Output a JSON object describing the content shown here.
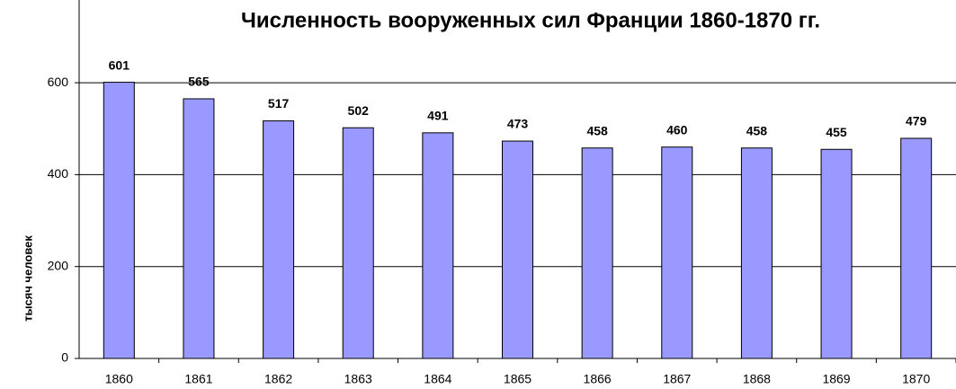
{
  "chart_data": {
    "type": "bar",
    "title": "Численность вооруженных сил Франции 1860-1870 гг.",
    "y_label": "тысяч человек",
    "categories": [
      "1860",
      "1861",
      "1862",
      "1863",
      "1864",
      "1865",
      "1866",
      "1867",
      "1868",
      "1869",
      "1870"
    ],
    "values": [
      601,
      565,
      517,
      502,
      491,
      473,
      458,
      460,
      458,
      455,
      479
    ],
    "color": "#9999ff",
    "ylim": [
      0,
      780
    ],
    "yticks": [
      0,
      200,
      400,
      600
    ],
    "grid": true
  }
}
